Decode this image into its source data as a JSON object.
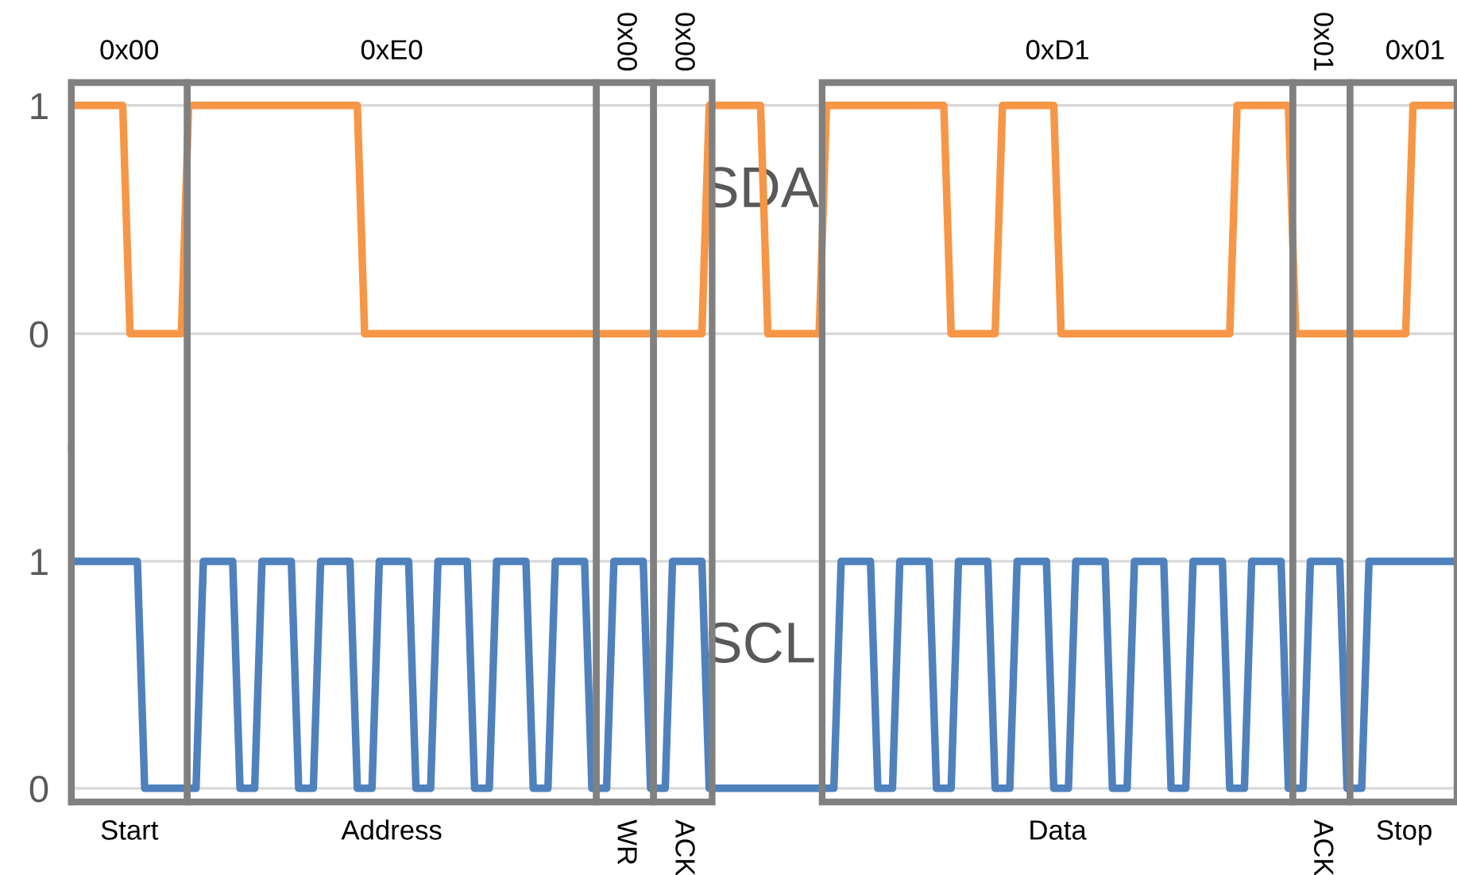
{
  "chart_data": [
    {
      "type": "line",
      "categories": [
        null,
        null,
        null,
        null,
        null,
        null,
        null,
        null,
        null,
        null,
        null,
        null,
        null,
        null,
        null,
        null,
        null,
        null,
        null,
        null,
        null,
        null,
        null,
        null,
        null,
        null,
        null,
        null,
        null,
        null,
        null,
        null,
        null,
        null,
        null,
        null,
        null,
        null,
        null,
        null,
        null,
        null,
        null,
        null,
        null,
        null,
        null,
        null,
        null,
        null,
        null,
        null,
        null,
        null,
        null,
        null,
        null,
        null,
        null,
        null,
        null,
        null,
        null,
        null,
        null,
        null,
        null,
        null,
        null,
        null,
        null,
        null,
        null,
        null,
        null,
        null,
        null,
        null,
        null,
        null,
        null,
        null,
        null,
        null,
        null,
        null,
        null,
        null,
        null,
        null,
        null,
        null,
        null,
        null,
        null,
        null,
        null,
        null,
        null,
        null,
        null,
        null,
        null,
        null,
        null,
        null,
        null,
        null,
        null,
        null,
        null,
        null,
        null,
        null,
        null,
        null,
        null,
        null,
        null,
        null,
        null,
        null,
        null,
        null,
        null,
        null,
        null,
        null,
        null,
        null,
        null,
        null,
        null,
        null,
        null,
        null,
        null,
        null,
        null,
        null,
        null,
        null,
        null,
        null,
        null,
        null,
        null,
        null,
        null,
        null,
        null,
        null,
        null,
        null,
        null,
        null,
        null,
        null,
        null,
        null,
        null,
        null,
        null,
        null,
        null,
        null,
        null,
        null,
        null,
        null,
        null,
        null,
        null,
        null,
        null,
        null,
        null,
        null,
        null,
        null,
        null,
        null,
        null,
        null,
        null,
        null,
        null,
        null,
        null,
        null
      ],
      "series": [
        {
          "name": "SDA",
          "color": "#f79646",
          "values": [
            1,
            1,
            1,
            1,
            1,
            1,
            1,
            1,
            0,
            0,
            0,
            0,
            0,
            0,
            0,
            0,
            1,
            1,
            1,
            1,
            1,
            1,
            1,
            1,
            1,
            1,
            1,
            1,
            1,
            1,
            1,
            1,
            1,
            1,
            1,
            1,
            1,
            1,
            1,
            1,
            0,
            0,
            0,
            0,
            0,
            0,
            0,
            0,
            0,
            0,
            0,
            0,
            0,
            0,
            0,
            0,
            0,
            0,
            0,
            0,
            0,
            0,
            0,
            0,
            0,
            0,
            0,
            0,
            0,
            0,
            0,
            0,
            0,
            0,
            0,
            0,
            0,
            0,
            0,
            0,
            0,
            0,
            0,
            0,
            0,
            0,
            0,
            1,
            1,
            1,
            1,
            1,
            1,
            1,
            1,
            0,
            0,
            0,
            0,
            0,
            0,
            0,
            0,
            1,
            1,
            1,
            1,
            1,
            1,
            1,
            1,
            1,
            1,
            1,
            1,
            1,
            1,
            1,
            1,
            1,
            0,
            0,
            0,
            0,
            0,
            0,
            0,
            1,
            1,
            1,
            1,
            1,
            1,
            1,
            1,
            0,
            0,
            0,
            0,
            0,
            0,
            0,
            0,
            0,
            0,
            0,
            0,
            0,
            0,
            0,
            0,
            0,
            0,
            0,
            0,
            0,
            0,
            0,
            0,
            1,
            1,
            1,
            1,
            1,
            1,
            1,
            1,
            0,
            0,
            0,
            0,
            0,
            0,
            0,
            0,
            0,
            0,
            0,
            0,
            0,
            0,
            0,
            0,
            1,
            1,
            1,
            1,
            1,
            1,
            1
          ]
        }
      ],
      "ylim": [
        -0.5,
        1.1
      ],
      "yticks": [
        0,
        1
      ],
      "grid": "y",
      "legend": false,
      "tick_labels": "y",
      "annotations": [
        "0x00",
        "0xE0",
        "0x00",
        "0x00",
        "0xD1",
        "0x01",
        "0x01"
      ]
    },
    {
      "type": "line",
      "categories": [
        null,
        null,
        null,
        null,
        null,
        null,
        null,
        null,
        null,
        null,
        null,
        null,
        null,
        null,
        null,
        null,
        null,
        null,
        null,
        null,
        null,
        null,
        null,
        null,
        null,
        null,
        null,
        null,
        null,
        null,
        null,
        null,
        null,
        null,
        null,
        null,
        null,
        null,
        null,
        null,
        null,
        null,
        null,
        null,
        null,
        null,
        null,
        null,
        null,
        null,
        null,
        null,
        null,
        null,
        null,
        null,
        null,
        null,
        null,
        null,
        null,
        null,
        null,
        null,
        null,
        null,
        null,
        null,
        null,
        null,
        null,
        null,
        null,
        null,
        null,
        null,
        null,
        null,
        null,
        null,
        null,
        null,
        null,
        null,
        null,
        null,
        null,
        null,
        null,
        null,
        null,
        null,
        null,
        null,
        null,
        null,
        null,
        null,
        null,
        null,
        null,
        null,
        null,
        null,
        null,
        null,
        null,
        null,
        null,
        null,
        null,
        null,
        null,
        null,
        null,
        null,
        null,
        null,
        null,
        null,
        null,
        null,
        null,
        null,
        null,
        null,
        null,
        null,
        null,
        null,
        null,
        null,
        null,
        null,
        null,
        null,
        null,
        null,
        null,
        null,
        null,
        null,
        null,
        null,
        null,
        null,
        null,
        null,
        null,
        null,
        null,
        null,
        null,
        null,
        null,
        null,
        null,
        null,
        null,
        null,
        null,
        null,
        null,
        null,
        null,
        null,
        null,
        null,
        null,
        null,
        null,
        null,
        null,
        null,
        null,
        null,
        null,
        null,
        null,
        null,
        null,
        null,
        null,
        null,
        null,
        null,
        null,
        null,
        null,
        null
      ],
      "series": [
        {
          "name": "SCL",
          "color": "#4f81bd",
          "values": [
            1,
            1,
            1,
            1,
            1,
            1,
            1,
            1,
            1,
            1,
            0,
            0,
            0,
            0,
            0,
            0,
            0,
            0,
            1,
            1,
            1,
            1,
            1,
            0,
            0,
            0,
            1,
            1,
            1,
            1,
            1,
            0,
            0,
            0,
            1,
            1,
            1,
            1,
            1,
            0,
            0,
            0,
            1,
            1,
            1,
            1,
            1,
            0,
            0,
            0,
            1,
            1,
            1,
            1,
            1,
            0,
            0,
            0,
            1,
            1,
            1,
            1,
            1,
            0,
            0,
            0,
            1,
            1,
            1,
            1,
            1,
            0,
            0,
            0,
            1,
            1,
            1,
            1,
            1,
            0,
            0,
            0,
            1,
            1,
            1,
            1,
            1,
            0,
            0,
            0,
            0,
            0,
            0,
            0,
            0,
            0,
            0,
            0,
            0,
            0,
            0,
            0,
            0,
            0,
            0,
            1,
            1,
            1,
            1,
            1,
            0,
            0,
            0,
            1,
            1,
            1,
            1,
            1,
            0,
            0,
            0,
            1,
            1,
            1,
            1,
            1,
            0,
            0,
            0,
            1,
            1,
            1,
            1,
            1,
            0,
            0,
            0,
            1,
            1,
            1,
            1,
            1,
            0,
            0,
            0,
            1,
            1,
            1,
            1,
            1,
            0,
            0,
            0,
            1,
            1,
            1,
            1,
            1,
            0,
            0,
            0,
            1,
            1,
            1,
            1,
            1,
            0,
            0,
            0,
            1,
            1,
            1,
            1,
            1,
            0,
            0,
            0,
            1,
            1,
            1,
            1,
            1,
            1,
            1,
            1,
            1,
            1,
            1,
            1,
            1
          ]
        }
      ],
      "ylim": [
        -0.06,
        1.5
      ],
      "yticks": [
        0,
        1
      ],
      "grid": "y",
      "legend": false,
      "tick_labels": "y",
      "annotations": [
        "Start",
        "Address",
        "WR",
        "ACK",
        "Data",
        "ACK",
        "Stop"
      ]
    }
  ]
}
